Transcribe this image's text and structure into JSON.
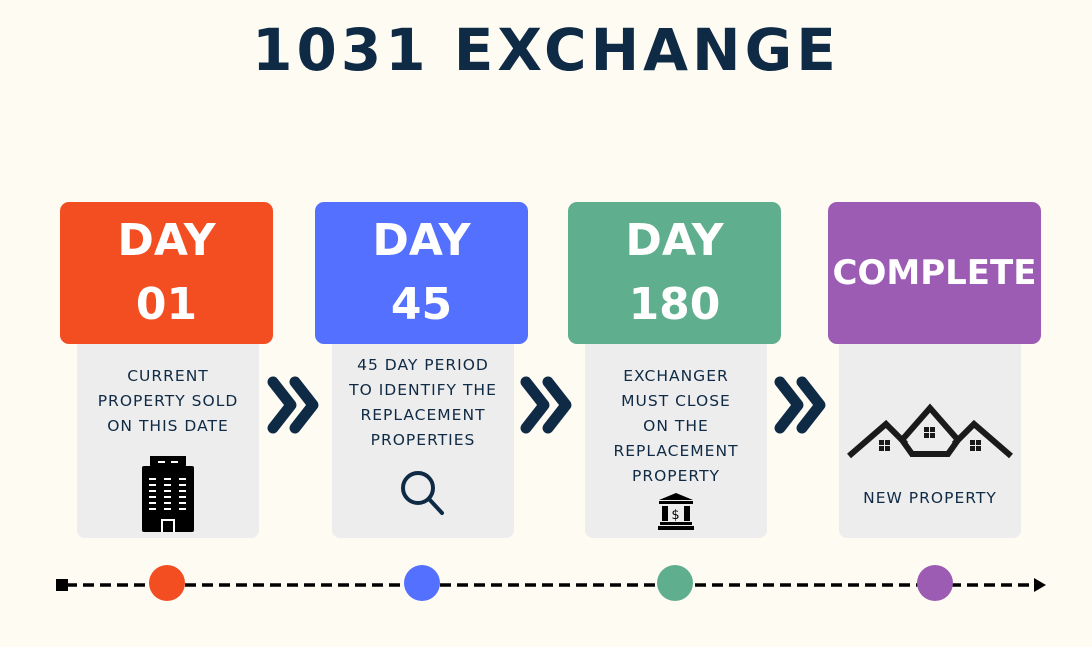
{
  "title": "1031 EXCHANGE",
  "colors": {
    "step1": "#f34e22",
    "step2": "#5470ff",
    "step3": "#5fae8e",
    "step4": "#9c5cb4",
    "dark": "#0f2a45"
  },
  "steps": [
    {
      "line1": "DAY",
      "line2": "01",
      "desc": [
        "CURRENT",
        "PROPERTY SOLD",
        "ON THIS DATE"
      ],
      "icon": "office-building-icon"
    },
    {
      "line1": "DAY",
      "line2": "45",
      "desc": [
        "45 DAY PERIOD",
        "TO IDENTIFY THE",
        "REPLACEMENT",
        "PROPERTIES"
      ],
      "icon": "search-icon"
    },
    {
      "line1": "DAY",
      "line2": "180",
      "desc": [
        "EXCHANGER",
        "MUST CLOSE",
        "ON THE",
        "REPLACEMENT",
        "PROPERTY"
      ],
      "icon": "bank-icon"
    },
    {
      "line1": "COMPLETE",
      "desc": [
        "NEW PROPERTY"
      ],
      "icon": "houses-icon"
    }
  ]
}
